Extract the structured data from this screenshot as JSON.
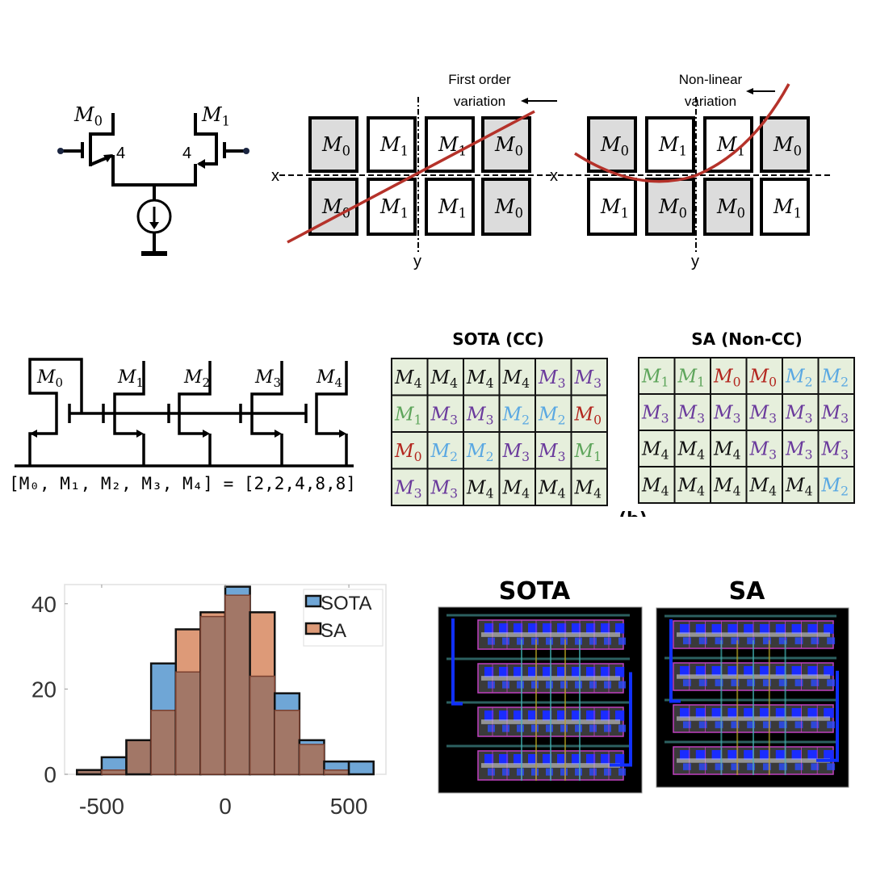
{
  "symbol": "M",
  "diff_pair": {
    "left_label": "0",
    "right_label": "1",
    "left_width": "4",
    "right_width": "4"
  },
  "first_order": {
    "caption_line1": "First order",
    "caption_line2": "variation",
    "x_axis": "x",
    "y_axis": "y",
    "rows": [
      [
        0,
        1,
        1,
        0
      ],
      [
        0,
        1,
        1,
        0
      ]
    ],
    "shaded": "0",
    "curve_color": "#b5322a"
  },
  "non_linear": {
    "caption_line1": "Non-linear",
    "caption_line2": "variation",
    "x_axis": "x",
    "y_axis": "y",
    "rows": [
      [
        0,
        1,
        1,
        0
      ],
      [
        1,
        0,
        0,
        1
      ]
    ],
    "shaded": "0",
    "curve_color": "#b5322a"
  },
  "mirror": {
    "labels": [
      "0",
      "1",
      "2",
      "3",
      "4"
    ],
    "formula": "[M₀, M₁, M₂, M₃, M₄] = [2,2,4,8,8]"
  },
  "placement": {
    "sota_title": "SOTA (CC)",
    "sa_title": "SA (Non-CC)",
    "panel_label": "(b)",
    "cell_bg": "#e6efdc",
    "colors": {
      "0": "#b3261e",
      "1": "#5ea55b",
      "2": "#5aa8e2",
      "3": "#6a3a9c",
      "4": "#111111"
    },
    "sota_rows": [
      [
        4,
        4,
        4,
        4,
        3,
        3
      ],
      [
        1,
        3,
        3,
        2,
        2,
        0
      ],
      [
        0,
        2,
        2,
        3,
        3,
        1
      ],
      [
        3,
        3,
        4,
        4,
        4,
        4
      ]
    ],
    "sa_rows": [
      [
        1,
        1,
        0,
        0,
        2,
        2
      ],
      [
        3,
        3,
        3,
        3,
        3,
        3
      ],
      [
        4,
        4,
        4,
        3,
        3,
        3
      ],
      [
        4,
        4,
        4,
        4,
        4,
        2
      ]
    ]
  },
  "chart_data": {
    "type": "bar",
    "subtype": "overlaid-histogram",
    "bin_edges": [
      -600,
      -500,
      -400,
      -300,
      -200,
      -100,
      0,
      100,
      200,
      300,
      400,
      500,
      600
    ],
    "series": [
      {
        "name": "SOTA",
        "color": "#6fa6d6",
        "values": [
          1,
          4,
          8,
          26,
          24,
          37,
          44,
          23,
          19,
          8,
          3,
          3
        ]
      },
      {
        "name": "SA",
        "color": "#dd9a78",
        "values": [
          1,
          1,
          8,
          15,
          34,
          38,
          42,
          38,
          15,
          7,
          1,
          0
        ]
      }
    ],
    "overlap_color": "#a27767",
    "xlim": [
      -650,
      650
    ],
    "ylim": [
      0,
      44.5
    ],
    "xticks": [
      "-500",
      "0",
      "500"
    ],
    "xtick_values": [
      -500,
      0,
      500
    ],
    "yticks": [
      "0",
      "20",
      "40"
    ],
    "ytick_values": [
      0,
      20,
      40
    ],
    "legend": "top-right",
    "grid": false
  },
  "layouts": {
    "sota_title": "SOTA",
    "sa_title": "SA"
  }
}
